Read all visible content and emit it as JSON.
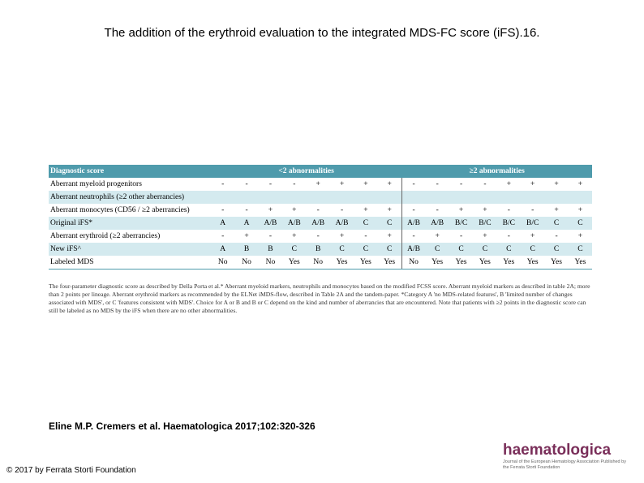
{
  "title": "The addition of the erythroid evaluation to the integrated MDS-FC score (iFS).16.",
  "table": {
    "header": {
      "label": "Diagnostic score",
      "left": "<2 abnormalities",
      "right": "≥2 abnormalities"
    },
    "rows": [
      {
        "label": "Aberrant myeloid progenitors",
        "cells": [
          "-",
          "-",
          "-",
          "-",
          "+",
          "+",
          "+",
          "+",
          "-",
          "-",
          "-",
          "-",
          "+",
          "+",
          "+",
          "+"
        ]
      },
      {
        "label": "Aberrant neutrophils (≥2 other aberrancies)"
      },
      {
        "label": "Aberrant monocytes (CD56 / ≥2 aberrancies)",
        "cells": [
          "-",
          "-",
          "+",
          "+",
          "-",
          "-",
          "+",
          "+",
          "-",
          "-",
          "+",
          "+",
          "-",
          "-",
          "+",
          "+"
        ]
      },
      {
        "label": "Original iFS*",
        "cells": [
          "A",
          "A",
          "A/B",
          "A/B",
          "A/B",
          "A/B",
          "C",
          "C",
          "A/B",
          "A/B",
          "B/C",
          "B/C",
          "B/C",
          "B/C",
          "C",
          "C"
        ]
      },
      {
        "label": "Aberrant erythroid (≥2 aberrancies)",
        "cells": [
          "-",
          "+",
          "-",
          "+",
          "-",
          "+",
          "-",
          "+",
          "-",
          "+",
          "-",
          "+",
          "-",
          "+",
          "-",
          "+"
        ]
      },
      {
        "label": "New iFS^",
        "cells": [
          "A",
          "B",
          "B",
          "C",
          "B",
          "C",
          "C",
          "C",
          "A/B",
          "C",
          "C",
          "C",
          "C",
          "C",
          "C",
          "C"
        ]
      },
      {
        "label": "Labeled MDS",
        "cells": [
          "No",
          "No",
          "No",
          "Yes",
          "No",
          "Yes",
          "Yes",
          "Yes",
          "No",
          "Yes",
          "Yes",
          "Yes",
          "Yes",
          "Yes",
          "Yes",
          "Yes"
        ]
      }
    ],
    "footnote": "The four-parameter diagnostic score as described by Della Porta et al.* Aberrant myeloid markers, neutrophils and monocytes based on the modified FCSS score. Aberrant myeloid markers as described in table 2A; more than 2 points per lineage. Aberrant erythroid markers as recommended by the ELNet iMDS-flow, described in Table 2A and the tandem-paper. *Category A 'no MDS-related features', B 'limited number of changes associated with MDS', or C 'features consistent with MDS'. Choice for A or B and B or C depend on the kind and number of aberrancies that are encountered. Note that patients with ≥2 points in the diagnostic score can still be labeled as no MDS by the iFS when there are no other abnormalities."
  },
  "citation": "Eline M.P. Cremers et al. Haematologica 2017;102:320-326",
  "copyright": "© 2017 by Ferrata Storti Foundation",
  "logo": {
    "name": "haematologica",
    "subtitle": "Journal of the European Hematology Association Published by the Ferrata Storti Foundation"
  }
}
